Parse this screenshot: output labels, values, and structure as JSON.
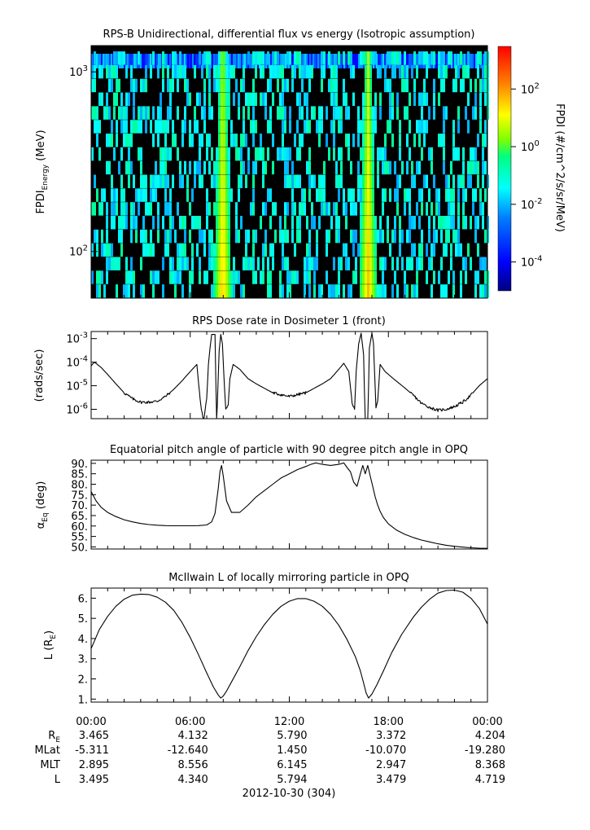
{
  "chart_data": [
    {
      "type": "heatmap",
      "title": "RPS-B  Unidirectional, differential flux vs energy (Isotropic assumption)",
      "ylabel_main": "FPDI",
      "ylabel_sub": "Energy",
      "ylabel_unit": "(MeV)",
      "y_scale": "log",
      "ylim": [
        55,
        1400
      ],
      "y_ticks": [
        {
          "base": "10",
          "exp": "2",
          "value": 100
        },
        {
          "base": "10",
          "exp": "3",
          "value": 1000
        }
      ],
      "xlim_hours": [
        0,
        24
      ],
      "colorbar": {
        "label": "FPDI (#/cm^2/s/sr/MeV)",
        "scale": "log",
        "range": [
          1e-05,
          3000
        ],
        "ticks": [
          {
            "base": "10",
            "exp": "2",
            "value": 100
          },
          {
            "base": "10",
            "exp": "0",
            "value": 1
          },
          {
            "base": "10",
            "exp": "-2",
            "value": 0.01
          },
          {
            "base": "10",
            "exp": "-4",
            "value": 0.0001
          }
        ]
      },
      "features": [
        {
          "name": "radiation belt crossing 1",
          "center_hour": 7.9
        },
        {
          "name": "radiation belt crossing 2",
          "center_hour": 16.7
        }
      ]
    },
    {
      "type": "line",
      "title": "RPS  Dose rate in Dosimeter 1 (front)",
      "ylabel": "(rads/sec)",
      "y_scale": "log",
      "ylim": [
        4e-07,
        0.002
      ],
      "y_ticks": [
        {
          "base": "10",
          "exp": "-3",
          "value": 0.001
        },
        {
          "base": "10",
          "exp": "-4",
          "value": 0.0001
        },
        {
          "base": "10",
          "exp": "-5",
          "value": 1e-05
        },
        {
          "base": "10",
          "exp": "-6",
          "value": 1e-06
        }
      ],
      "x": [
        0,
        0.2,
        0.6,
        1,
        1.5,
        2,
        2.5,
        3,
        3.5,
        4,
        4.5,
        5,
        5.5,
        6,
        6.4,
        6.6,
        6.8,
        7.0,
        7.1,
        7.2,
        7.3,
        7.5,
        7.6,
        7.75,
        7.85,
        7.95,
        8.05,
        8.15,
        8.3,
        8.4,
        8.6,
        9,
        9.5,
        10,
        11,
        12,
        13,
        14,
        14.5,
        15,
        15.3,
        15.6,
        15.8,
        15.95,
        16.05,
        16.2,
        16.35,
        16.5,
        16.6,
        16.75,
        16.85,
        17.0,
        17.1,
        17.25,
        17.35,
        17.5,
        17.8,
        18.3,
        19,
        19.5,
        20,
        20.5,
        21,
        21.5,
        22,
        22.5,
        23,
        23.5,
        24
      ],
      "values": [
        7e-05,
        0.0001,
        6e-05,
        3e-05,
        1.2e-05,
        5e-06,
        2.8e-06,
        2e-06,
        2e-06,
        2.2e-06,
        3.5e-06,
        7e-06,
        1.6e-05,
        4e-05,
        8e-05,
        2.5e-06,
        3e-07,
        3e-06,
        8e-05,
        0.0004,
        0.0015,
        0.0015,
        2e-07,
        0.0003,
        0.0015,
        0.0006,
        2e-05,
        1e-06,
        1.5e-06,
        2e-05,
        8e-05,
        5e-05,
        2e-05,
        1.2e-05,
        5e-06,
        3.5e-06,
        5e-06,
        1.2e-05,
        2e-05,
        5e-05,
        9e-05,
        4e-05,
        2e-06,
        1e-06,
        4e-05,
        0.0006,
        0.0017,
        0.0002,
        2e-07,
        2e-07,
        0.0004,
        0.0017,
        0.0006,
        1e-06,
        2e-06,
        8e-05,
        4e-05,
        2e-05,
        8e-06,
        4e-06,
        1.8e-06,
        1.2e-06,
        9e-07,
        1e-06,
        1.3e-06,
        2e-06,
        4e-06,
        1e-05,
        2e-05
      ]
    },
    {
      "type": "line",
      "title": "Equatorial pitch angle of particle with 90 degree pitch angle in OPQ",
      "ylabel_main": "α",
      "ylabel_sub": "Eq",
      "ylabel_unit": "(deg)",
      "ylim": [
        49,
        91.5
      ],
      "y_ticks": [
        "90.",
        "85.",
        "80.",
        "75.",
        "70.",
        "65.",
        "60.",
        "55.",
        "50."
      ],
      "x": [
        0,
        0.3,
        0.6,
        1,
        1.5,
        2,
        2.5,
        3,
        3.5,
        4,
        4.5,
        5,
        5.5,
        6,
        6.5,
        7.0,
        7.3,
        7.5,
        7.7,
        7.8,
        7.9,
        8.0,
        8.2,
        8.5,
        9,
        9.5,
        10,
        10.5,
        11,
        11.5,
        12,
        12.5,
        13,
        13.3,
        13.6,
        14,
        14.5,
        15,
        15.3,
        15.5,
        15.7,
        15.9,
        16.1,
        16.3,
        16.45,
        16.6,
        16.75,
        16.9,
        17.05,
        17.2,
        17.35,
        17.5,
        17.7,
        18,
        18.5,
        19,
        19.5,
        20,
        20.5,
        21,
        21.5,
        22,
        22.5,
        23,
        23.5,
        24
      ],
      "values": [
        76.5,
        72,
        69,
        66.5,
        64.5,
        63,
        62,
        61.2,
        60.7,
        60.4,
        60.2,
        60.1,
        60.1,
        60.1,
        60.2,
        60.5,
        62,
        66,
        78,
        86,
        89,
        84,
        72,
        66.5,
        66.5,
        70,
        74,
        77,
        80,
        83,
        85,
        87,
        88.5,
        89.5,
        90.2,
        89.5,
        89.0,
        89.5,
        90.2,
        88,
        86,
        81,
        79,
        85,
        89,
        85,
        89,
        84,
        79,
        74,
        70,
        67,
        64,
        61,
        58,
        56,
        54.5,
        53.3,
        52.4,
        51.5,
        50.8,
        50.3,
        49.9,
        49.6,
        49.4,
        49.3
      ]
    },
    {
      "type": "line",
      "title": "McIlwain L of locally mirroring particle in OPQ",
      "ylabel_main": "L (R",
      "ylabel_sub": "E",
      "ylabel_unit": ")",
      "ylim": [
        0.85,
        6.5
      ],
      "y_ticks": [
        "6.",
        "5.",
        "4.",
        "3.",
        "2.",
        "1."
      ],
      "x": [
        0,
        0.5,
        1,
        1.5,
        2,
        2.5,
        3,
        3.5,
        4,
        4.5,
        5,
        5.5,
        6,
        6.5,
        7,
        7.4,
        7.7,
        7.85,
        8.0,
        8.2,
        8.5,
        9,
        9.5,
        10,
        10.5,
        11,
        11.5,
        12,
        12.5,
        13,
        13.5,
        14,
        14.5,
        15,
        15.5,
        16,
        16.3,
        16.5,
        16.65,
        16.8,
        17.0,
        17.3,
        17.7,
        18.2,
        18.8,
        19.5,
        20,
        20.5,
        21,
        21.5,
        22,
        22.5,
        23,
        23.5,
        24
      ],
      "values": [
        3.5,
        4.45,
        5.1,
        5.6,
        5.95,
        6.15,
        6.2,
        6.18,
        6.05,
        5.8,
        5.4,
        4.8,
        4.05,
        3.2,
        2.3,
        1.6,
        1.2,
        1.05,
        1.15,
        1.4,
        1.85,
        2.6,
        3.4,
        4.1,
        4.7,
        5.2,
        5.6,
        5.85,
        5.98,
        5.98,
        5.85,
        5.6,
        5.2,
        4.65,
        3.95,
        3.1,
        2.4,
        1.8,
        1.3,
        1.05,
        1.25,
        1.7,
        2.4,
        3.3,
        4.2,
        5.05,
        5.55,
        5.95,
        6.25,
        6.38,
        6.4,
        6.3,
        6.0,
        5.5,
        4.72
      ]
    }
  ],
  "time_axis": {
    "tick_labels": [
      "00:00",
      "06:00",
      "12:00",
      "18:00",
      "00:00"
    ],
    "tick_hours": [
      0,
      6,
      12,
      18,
      24
    ],
    "date_label": "2012-10-30 (304)"
  },
  "ephemeris": {
    "rows": [
      {
        "name": "R",
        "sub": "E",
        "values": [
          "3.465",
          "4.132",
          "5.790",
          "3.372",
          "4.204"
        ]
      },
      {
        "name": "MLat",
        "sub": "",
        "values": [
          "-5.311",
          "-12.640",
          "1.450",
          "-10.070",
          "-19.280"
        ]
      },
      {
        "name": "MLT",
        "sub": "",
        "values": [
          "2.895",
          "8.556",
          "6.145",
          "2.947",
          "8.368"
        ]
      },
      {
        "name": "L",
        "sub": "",
        "values": [
          "3.495",
          "4.340",
          "5.794",
          "3.479",
          "4.719"
        ]
      }
    ]
  },
  "colors": {
    "line": "#000000",
    "axis": "#000000",
    "background": "#ffffff",
    "spectrogram_background": "#000000",
    "colormap": [
      "#00007f",
      "#0000ff",
      "#007fff",
      "#00ffff",
      "#00ff7f",
      "#7fff00",
      "#ffff00",
      "#ff7f00",
      "#ff0000"
    ]
  }
}
